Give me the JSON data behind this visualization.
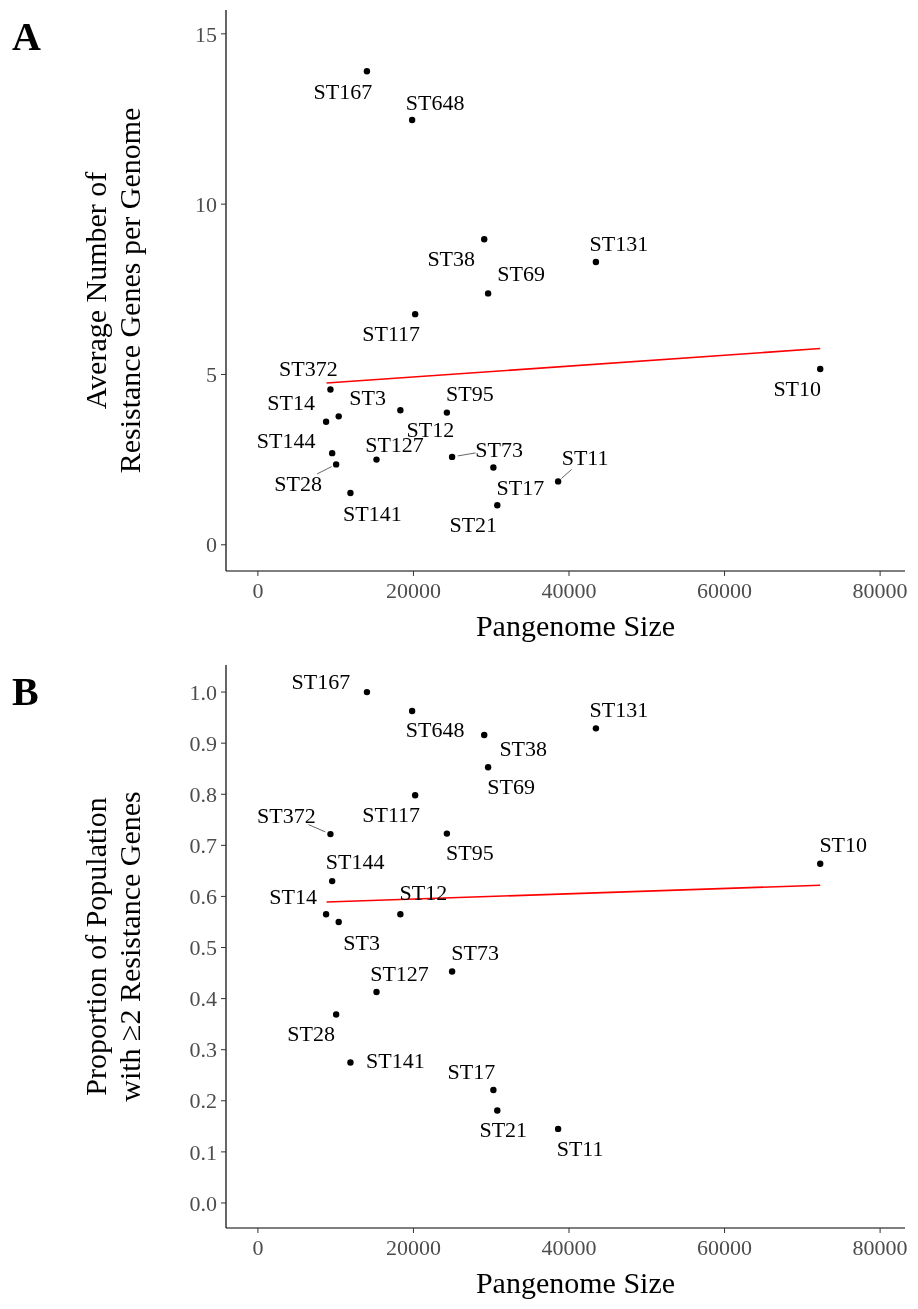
{
  "chart_data": [
    {
      "type": "scatter",
      "xlabel": "Pangenome Size",
      "ylabel": "Average Number of\nResistance Genes per Genome",
      "xlim": [
        -4100,
        83200
      ],
      "ylim": [
        -0.77,
        15.7
      ],
      "xticks": [
        0,
        20000,
        40000,
        60000,
        80000
      ],
      "yticks": [
        0,
        5,
        10,
        15
      ],
      "grid": false,
      "marker": "circle",
      "series": [
        {
          "color": "#000000",
          "x": [
            14020,
            19830,
            29100,
            43460,
            29600,
            20220,
            72300,
            9330,
            8770,
            10390,
            18320,
            24300,
            9550,
            10060,
            15250,
            24970,
            30280,
            38600,
            11900,
            30780
          ],
          "values": [
            13.9,
            12.47,
            8.97,
            8.3,
            7.38,
            6.77,
            5.16,
            4.56,
            3.61,
            3.77,
            3.95,
            3.88,
            2.69,
            2.36,
            2.5,
            2.58,
            2.27,
            1.86,
            1.52,
            1.16
          ]
        },
        {
          "type": "line",
          "color": "#ff0000",
          "marker": "none",
          "x": [
            8830,
            72300
          ],
          "values": [
            4.75,
            5.76
          ]
        }
      ],
      "annotations": [
        "A",
        {
          "text": "ST167",
          "x": 14020,
          "y": 13.9
        },
        {
          "text": "ST648",
          "x": 19830,
          "y": 12.47
        },
        {
          "text": "ST38",
          "x": 29100,
          "y": 8.97
        },
        {
          "text": "ST131",
          "x": 43460,
          "y": 8.3
        },
        {
          "text": "ST69",
          "x": 29600,
          "y": 7.38
        },
        {
          "text": "ST117",
          "x": 20220,
          "y": 6.77
        },
        {
          "text": "ST10",
          "x": 72300,
          "y": 5.16
        },
        {
          "text": "ST372",
          "x": 9330,
          "y": 4.56
        },
        {
          "text": "ST14",
          "x": 8770,
          "y": 3.61
        },
        {
          "text": "ST3",
          "x": 10390,
          "y": 3.77
        },
        {
          "text": "ST12",
          "x": 18320,
          "y": 3.95
        },
        {
          "text": "ST95",
          "x": 24300,
          "y": 3.88
        },
        {
          "text": "ST144",
          "x": 9550,
          "y": 2.69
        },
        {
          "text": "ST28",
          "x": 10060,
          "y": 2.36
        },
        {
          "text": "ST127",
          "x": 15250,
          "y": 2.5
        },
        {
          "text": "ST73",
          "x": 24970,
          "y": 2.58
        },
        {
          "text": "ST17",
          "x": 30280,
          "y": 2.27
        },
        {
          "text": "ST11",
          "x": 38600,
          "y": 1.86
        },
        {
          "text": "ST141",
          "x": 11900,
          "y": 1.52
        },
        {
          "text": "ST21",
          "x": 30780,
          "y": 1.16
        }
      ]
    },
    {
      "type": "scatter",
      "xlabel": "Pangenome Size",
      "ylabel": "Proportion of Population\nwith ≥2 Resistance Genes",
      "xlim": [
        -4100,
        83200
      ],
      "ylim": [
        -0.049,
        1.053
      ],
      "xticks": [
        0,
        20000,
        40000,
        60000,
        80000
      ],
      "yticks": [
        {
          "value": 0,
          "label": "0.0"
        },
        0.1,
        0.2,
        0.3,
        0.4,
        0.5,
        0.6,
        0.7,
        0.8,
        0.9,
        {
          "value": 1,
          "label": "1.0"
        }
      ],
      "grid": false,
      "marker": "circle",
      "series": [
        {
          "color": "#000000",
          "x": [
            14020,
            19830,
            29100,
            43460,
            29600,
            20220,
            72300,
            9330,
            8770,
            10390,
            18320,
            24300,
            9550,
            10060,
            15250,
            24970,
            30280,
            38600,
            11900,
            30780
          ],
          "values": [
            1.0,
            0.963,
            0.916,
            0.929,
            0.853,
            0.798,
            0.664,
            0.722,
            0.565,
            0.55,
            0.565,
            0.723,
            0.63,
            0.369,
            0.413,
            0.453,
            0.221,
            0.145,
            0.275,
            0.181
          ]
        },
        {
          "type": "line",
          "color": "#ff0000",
          "marker": "none",
          "x": [
            8830,
            72300
          ],
          "values": [
            0.589,
            0.622
          ]
        }
      ],
      "annotations": [
        "B",
        {
          "text": "ST167",
          "x": 14020,
          "y": 1.0
        },
        {
          "text": "ST648",
          "x": 19830,
          "y": 0.963
        },
        {
          "text": "ST38",
          "x": 29100,
          "y": 0.916
        },
        {
          "text": "ST131",
          "x": 43460,
          "y": 0.929
        },
        {
          "text": "ST69",
          "x": 29600,
          "y": 0.853
        },
        {
          "text": "ST117",
          "x": 20220,
          "y": 0.798
        },
        {
          "text": "ST10",
          "x": 72300,
          "y": 0.664
        },
        {
          "text": "ST372",
          "x": 9330,
          "y": 0.722
        },
        {
          "text": "ST14",
          "x": 8770,
          "y": 0.565
        },
        {
          "text": "ST3",
          "x": 10390,
          "y": 0.55
        },
        {
          "text": "ST12",
          "x": 18320,
          "y": 0.565
        },
        {
          "text": "ST95",
          "x": 24300,
          "y": 0.723
        },
        {
          "text": "ST144",
          "x": 9550,
          "y": 0.63
        },
        {
          "text": "ST28",
          "x": 10060,
          "y": 0.369
        },
        {
          "text": "ST127",
          "x": 15250,
          "y": 0.413
        },
        {
          "text": "ST73",
          "x": 24970,
          "y": 0.453
        },
        {
          "text": "ST17",
          "x": 30280,
          "y": 0.221
        },
        {
          "text": "ST11",
          "x": 38600,
          "y": 0.145
        },
        {
          "text": "ST141",
          "x": 11900,
          "y": 0.275
        },
        {
          "text": "ST21",
          "x": 30780,
          "y": 0.181
        }
      ]
    }
  ]
}
